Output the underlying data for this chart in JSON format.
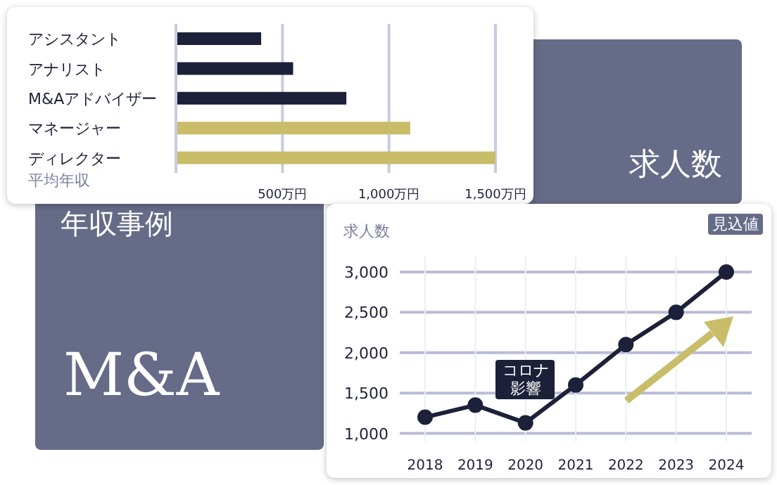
{
  "chart_data": [
    {
      "type": "bar",
      "orientation": "horizontal",
      "title": "年収事例",
      "subtitle": "M&A",
      "xlabel": "平均年収",
      "categories": [
        "アシスタント",
        "アナリスト",
        "M&Aアドバイザー",
        "マネージャー",
        "ディレクター"
      ],
      "values": [
        400,
        550,
        800,
        1100,
        1500
      ],
      "colors": [
        "#1c2038",
        "#1c2038",
        "#1c2038",
        "#c9bd6a",
        "#c9bd6a"
      ],
      "xlim": [
        0,
        1500
      ],
      "xticks": [
        {
          "value": 0,
          "label": null
        },
        {
          "value": 500,
          "label": "500万円"
        },
        {
          "value": 1000,
          "label": "1,000万円"
        },
        {
          "value": 1500,
          "label": "1,500万円"
        }
      ],
      "grid": "x"
    },
    {
      "type": "line",
      "title": "求人数",
      "ylabel": "求人数",
      "categories": [
        "2018",
        "2019",
        "2020",
        "2021",
        "2022",
        "2023",
        "2024"
      ],
      "series": [
        {
          "color": "#1c2038",
          "values": [
            1200,
            1350,
            1130,
            1600,
            2100,
            2500,
            3000
          ]
        }
      ],
      "marker": "circle",
      "ylim": [
        900,
        3200
      ],
      "yticks": [
        {
          "value": 1000,
          "label": "1,000"
        },
        {
          "value": 1500,
          "label": "1,500"
        },
        {
          "value": 2000,
          "label": "2,000"
        },
        {
          "value": 2500,
          "label": "2,500"
        },
        {
          "value": 3000,
          "label": "3,000"
        }
      ],
      "grid": true,
      "annotations": [
        {
          "text": "コロナ影響",
          "x": "2020",
          "y": 1650
        },
        "見込値"
      ]
    }
  ]
}
